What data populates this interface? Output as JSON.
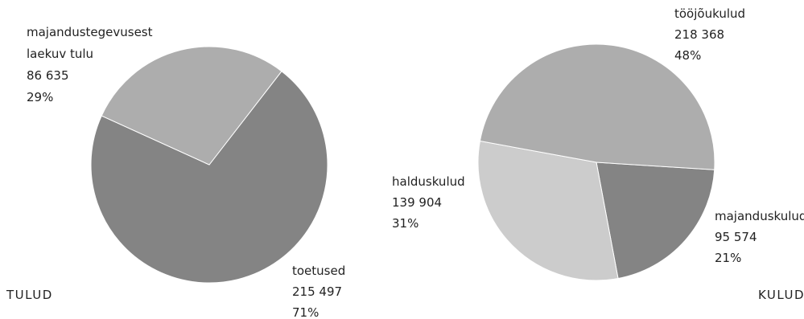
{
  "chart_data": [
    {
      "type": "pie",
      "title": "TULUD",
      "slices": [
        {
          "name": "toetused",
          "value": 215497,
          "value_label": "215 497",
          "percent_label": "71%",
          "color": "#848484"
        },
        {
          "name": "majandustegevusest laekuv tulu",
          "name_lines": [
            "majandustegevusest",
            "laekuv tulu"
          ],
          "value": 86635,
          "value_label": "86 635",
          "percent_label": "29%",
          "color": "#adadad"
        }
      ]
    },
    {
      "type": "pie",
      "title": "KULUD",
      "slices": [
        {
          "name": "tööjõukulud",
          "value": 218368,
          "value_label": "218 368",
          "percent_label": "48%",
          "color": "#adadad"
        },
        {
          "name": "majanduskulud",
          "value": 95574,
          "value_label": "95 574",
          "percent_label": "21%",
          "color": "#848484"
        },
        {
          "name": "halduskulud",
          "value": 139904,
          "value_label": "139 904",
          "percent_label": "31%",
          "color": "#cccccc"
        }
      ]
    }
  ]
}
